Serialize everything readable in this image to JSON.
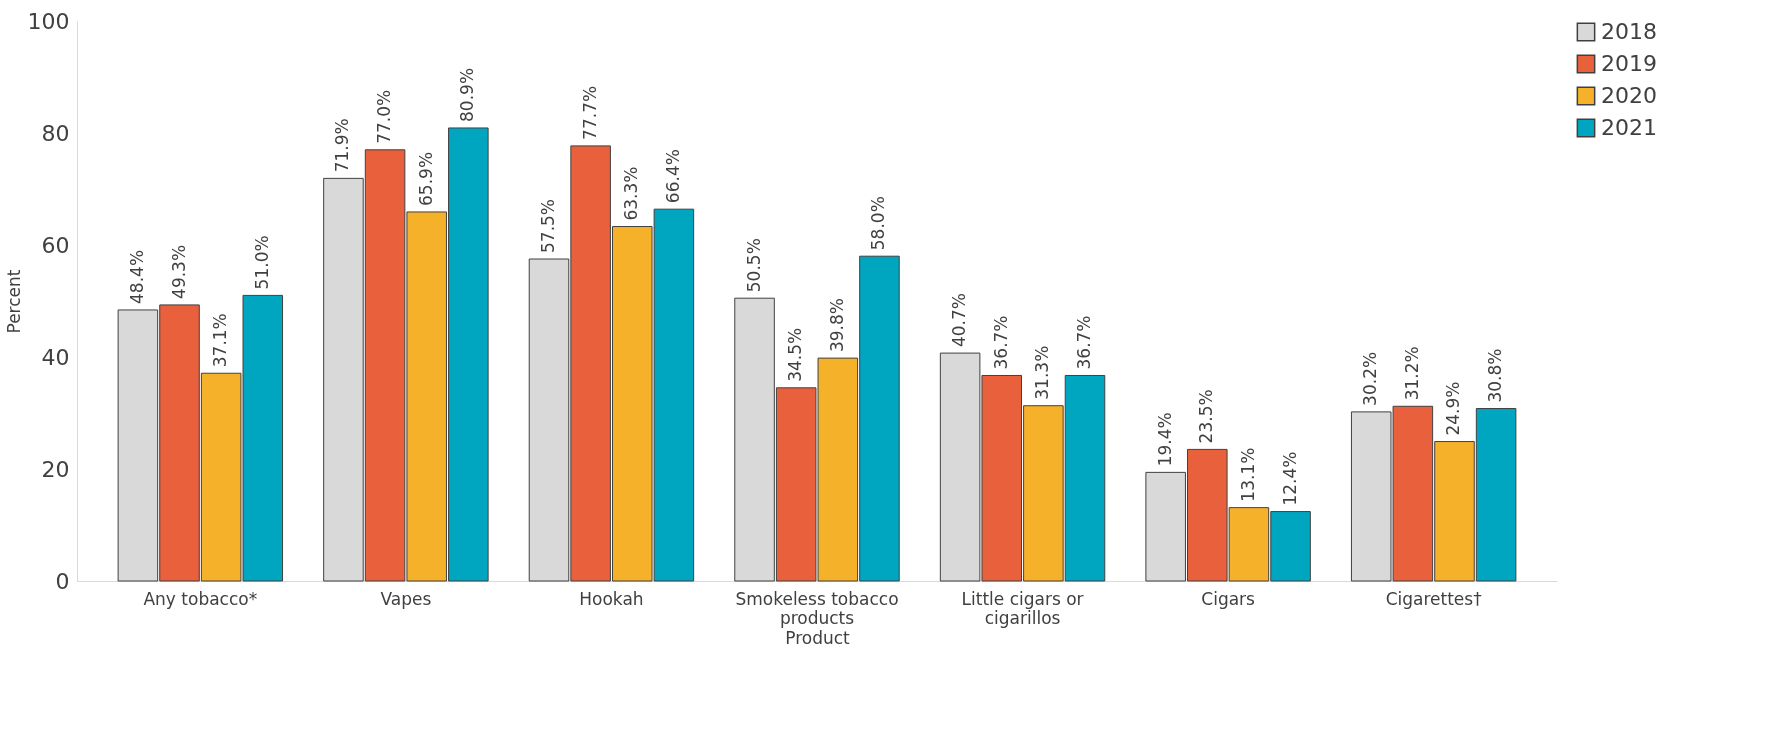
{
  "chart_data": {
    "type": "bar",
    "xlabel": "Product",
    "ylabel": "Percent",
    "categories": [
      "Any tobacco*",
      "Vapes",
      "Hookah",
      "Smokeless tobacco products",
      "Little cigars or cigarillos",
      "Cigars",
      "Cigarettes†"
    ],
    "series": [
      {
        "name": "2018",
        "color": "#d9d9d9",
        "values": [
          48.4,
          71.9,
          57.5,
          50.5,
          40.7,
          19.4,
          30.2
        ],
        "value_labels": [
          "48.4%",
          "71.9%",
          "57.5%",
          "50.5%",
          "40.7%",
          "19.4%",
          "30.2%"
        ]
      },
      {
        "name": "2019",
        "color": "#e8603c",
        "values": [
          49.3,
          77.0,
          77.7,
          34.5,
          36.7,
          23.5,
          31.2
        ],
        "value_labels": [
          "49.3%",
          "77.0%",
          "77.7%",
          "34.5%",
          "36.7%",
          "23.5%",
          "31.2%"
        ]
      },
      {
        "name": "2020",
        "color": "#f6b12a",
        "values": [
          37.1,
          65.9,
          63.3,
          39.8,
          31.3,
          13.1,
          24.9
        ],
        "value_labels": [
          "37.1%",
          "65.9%",
          "63.3%",
          "39.8%",
          "31.3%",
          "13.1%",
          "24.9%"
        ]
      },
      {
        "name": "2021",
        "color": "#00a6bf",
        "values": [
          51.0,
          80.9,
          66.4,
          58.0,
          36.7,
          12.4,
          30.8
        ],
        "value_labels": [
          "51.0%",
          "80.9%",
          "66.4%",
          "58.0%",
          "36.7%",
          "12.4%",
          "30.8%"
        ]
      }
    ],
    "ylim": [
      0,
      100
    ],
    "yticks": [
      0,
      20,
      40,
      60,
      80,
      100
    ],
    "grid": false,
    "legend": "right"
  }
}
